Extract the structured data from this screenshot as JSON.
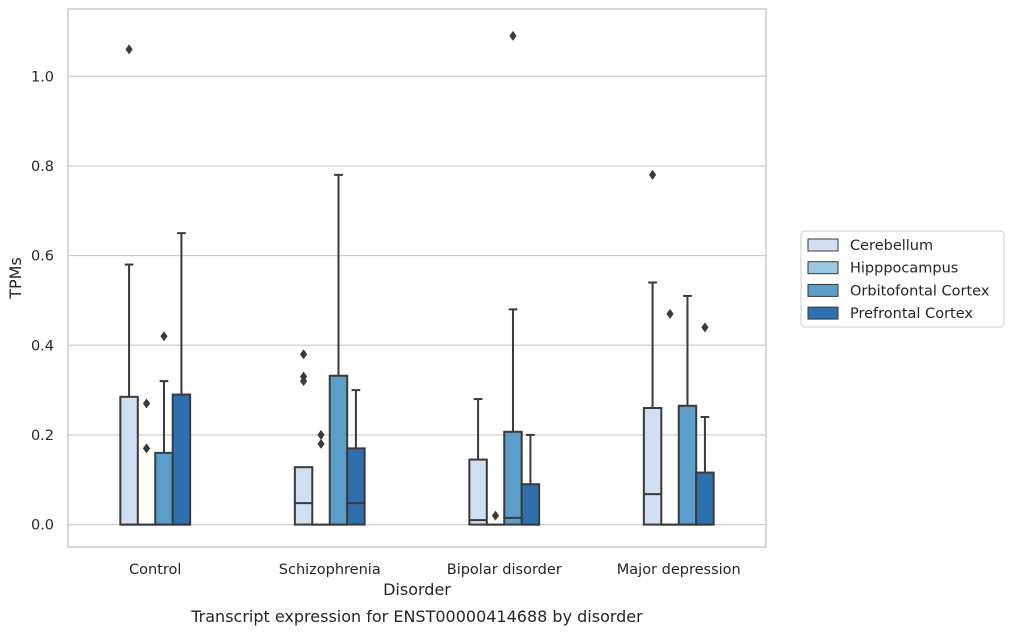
{
  "chart_data": {
    "type": "box",
    "caption": "Transcript expression for ENST00000414688 by disorder",
    "xlabel": "Disorder",
    "ylabel": "TPMs",
    "ylim": [
      -0.05,
      1.15
    ],
    "yticks": [
      0.0,
      0.2,
      0.4,
      0.6,
      0.8,
      1.0
    ],
    "ytick_labels": [
      "0.0",
      "0.2",
      "0.4",
      "0.6",
      "0.8",
      "1.0"
    ],
    "grid": "horizontal",
    "legend_placement": "right",
    "categories": [
      "Control",
      "Schizophrenia",
      "Bipolar disorder",
      "Major depression"
    ],
    "series": [
      {
        "name": "Cerebellum",
        "color": "#d0e0f0",
        "boxes": [
          {
            "whislo": 0.0,
            "q1": 0.0,
            "med": 0.0,
            "q3": 0.285,
            "whishi": 0.58,
            "fliers": [
              1.06
            ]
          },
          {
            "whislo": 0.0,
            "q1": 0.0,
            "med": 0.048,
            "q3": 0.128,
            "whishi": 0.128,
            "fliers": [
              0.32,
              0.33,
              0.38
            ]
          },
          {
            "whislo": 0.0,
            "q1": 0.0,
            "med": 0.01,
            "q3": 0.145,
            "whishi": 0.28,
            "fliers": []
          },
          {
            "whislo": 0.0,
            "q1": 0.0,
            "med": 0.068,
            "q3": 0.26,
            "whishi": 0.54,
            "fliers": [
              0.78
            ]
          }
        ]
      },
      {
        "name": "Hipppocampus",
        "color": "#9ac8e0",
        "boxes": [
          {
            "whislo": 0.0,
            "q1": 0.0,
            "med": 0.0,
            "q3": 0.0,
            "whishi": 0.0,
            "fliers": [
              0.17,
              0.27
            ]
          },
          {
            "whislo": 0.0,
            "q1": 0.0,
            "med": 0.0,
            "q3": 0.0,
            "whishi": 0.0,
            "fliers": [
              0.18,
              0.2
            ]
          },
          {
            "whislo": 0.0,
            "q1": 0.0,
            "med": 0.0,
            "q3": 0.0,
            "whishi": 0.0,
            "fliers": [
              0.02
            ]
          },
          {
            "whislo": 0.0,
            "q1": 0.0,
            "med": 0.0,
            "q3": 0.0,
            "whishi": 0.0,
            "fliers": [
              0.47
            ]
          }
        ]
      },
      {
        "name": "Orbitofontal Cortex",
        "color": "#5a9ec9",
        "boxes": [
          {
            "whislo": 0.0,
            "q1": 0.0,
            "med": 0.0,
            "q3": 0.16,
            "whishi": 0.32,
            "fliers": [
              0.42
            ]
          },
          {
            "whislo": 0.0,
            "q1": 0.0,
            "med": 0.0,
            "q3": 0.332,
            "whishi": 0.78,
            "fliers": []
          },
          {
            "whislo": 0.0,
            "q1": 0.0,
            "med": 0.015,
            "q3": 0.207,
            "whishi": 0.48,
            "fliers": [
              1.09
            ]
          },
          {
            "whislo": 0.0,
            "q1": 0.0,
            "med": 0.0,
            "q3": 0.265,
            "whishi": 0.51,
            "fliers": []
          }
        ]
      },
      {
        "name": "Prefrontal Cortex",
        "color": "#2e6fae",
        "boxes": [
          {
            "whislo": 0.0,
            "q1": 0.0,
            "med": 0.0,
            "q3": 0.29,
            "whishi": 0.65,
            "fliers": []
          },
          {
            "whislo": 0.0,
            "q1": 0.0,
            "med": 0.048,
            "q3": 0.17,
            "whishi": 0.3,
            "fliers": []
          },
          {
            "whislo": 0.0,
            "q1": 0.0,
            "med": 0.0,
            "q3": 0.09,
            "whishi": 0.2,
            "fliers": []
          },
          {
            "whislo": 0.0,
            "q1": 0.0,
            "med": 0.0,
            "q3": 0.116,
            "whishi": 0.24,
            "fliers": [
              0.44
            ]
          }
        ]
      }
    ]
  }
}
